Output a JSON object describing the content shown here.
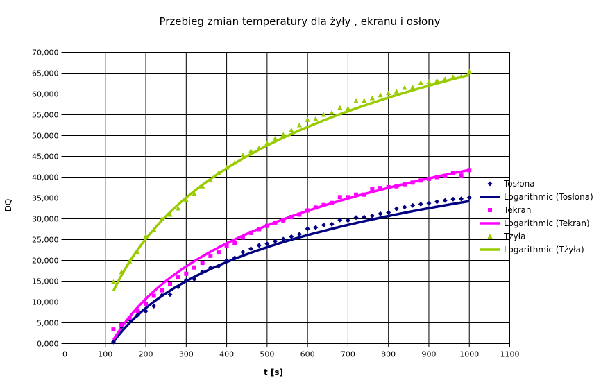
{
  "chart_data": {
    "type": "scatter",
    "title": "Przebieg zmian temperatury dla żyły , ekranu i osłony",
    "xlabel": "t [s]",
    "ylabel": "DQ",
    "xlim": [
      0,
      1100
    ],
    "ylim": [
      0,
      70000
    ],
    "xticks": [
      0,
      100,
      200,
      300,
      400,
      500,
      600,
      700,
      800,
      900,
      1000,
      1100
    ],
    "xtick_labels": [
      "0",
      "100",
      "200",
      "300",
      "400",
      "500",
      "600",
      "700",
      "800",
      "900",
      "1000",
      "1100"
    ],
    "yticks": [
      0,
      5000,
      10000,
      15000,
      20000,
      25000,
      30000,
      35000,
      40000,
      45000,
      50000,
      55000,
      60000,
      65000,
      70000
    ],
    "ytick_labels": [
      "0,000",
      "5,000",
      "10,000",
      "15,000",
      "20,000",
      "25,000",
      "30,000",
      "35,000",
      "40,000",
      "45,000",
      "50,000",
      "55,000",
      "60,000",
      "65,000",
      "70,000"
    ],
    "grid": true,
    "legend_position": "right",
    "series": [
      {
        "name": "Tosłona",
        "marker": "diamond",
        "color": "#000080",
        "x": [
          120,
          140,
          160,
          180,
          200,
          220,
          240,
          260,
          280,
          300,
          320,
          340,
          360,
          380,
          400,
          420,
          440,
          460,
          480,
          500,
          520,
          540,
          560,
          580,
          600,
          620,
          640,
          660,
          680,
          700,
          720,
          740,
          760,
          780,
          800,
          820,
          840,
          860,
          880,
          900,
          920,
          940,
          960,
          980,
          1000
        ],
        "y": [
          400,
          4000,
          5800,
          6900,
          7800,
          9000,
          11600,
          11800,
          13600,
          15200,
          15500,
          17200,
          18200,
          18600,
          20000,
          20600,
          22000,
          22800,
          23600,
          24000,
          24600,
          25100,
          25700,
          26300,
          27600,
          27900,
          28500,
          28700,
          29700,
          29600,
          30300,
          30400,
          30700,
          31200,
          31500,
          32400,
          32800,
          33200,
          33500,
          33700,
          34100,
          34400,
          34700,
          34800,
          35100
        ]
      },
      {
        "name": "Logarithmic (Tosłona)",
        "type": "line",
        "color": "#000080",
        "fit": {
          "a": 15962.8,
          "b": -76042
        },
        "x_range": [
          120,
          1000
        ]
      },
      {
        "name": "Tekran",
        "marker": "square",
        "color": "#ff00ff",
        "x": [
          120,
          140,
          160,
          180,
          200,
          220,
          240,
          260,
          280,
          300,
          320,
          340,
          360,
          380,
          400,
          420,
          440,
          460,
          480,
          500,
          520,
          540,
          560,
          580,
          600,
          620,
          640,
          660,
          680,
          700,
          720,
          740,
          760,
          780,
          800,
          820,
          840,
          860,
          880,
          900,
          920,
          940,
          960,
          980,
          1000
        ],
        "y": [
          3400,
          4500,
          6200,
          7900,
          9600,
          11500,
          12800,
          14300,
          15900,
          16800,
          18300,
          19400,
          21100,
          21900,
          23500,
          24200,
          25500,
          26600,
          27500,
          28300,
          29100,
          29600,
          30400,
          31000,
          32000,
          32700,
          33300,
          33800,
          35200,
          35200,
          35800,
          35800,
          37200,
          37400,
          37600,
          37800,
          38300,
          38700,
          39200,
          39600,
          40000,
          40300,
          41000,
          40400,
          41700
        ]
      },
      {
        "name": "Logarithmic (Tekran)",
        "type": "line",
        "color": "#ff00ff",
        "fit": {
          "a": 19254.1,
          "b": -91266
        },
        "x_range": [
          120,
          1000
        ]
      },
      {
        "name": "Tżyła",
        "marker": "triangle",
        "color": "#99cc00",
        "x": [
          120,
          140,
          160,
          180,
          200,
          220,
          240,
          260,
          280,
          300,
          320,
          340,
          360,
          380,
          400,
          420,
          440,
          460,
          480,
          500,
          520,
          540,
          560,
          580,
          600,
          620,
          640,
          660,
          680,
          700,
          720,
          740,
          760,
          780,
          800,
          820,
          840,
          860,
          880,
          900,
          920,
          940,
          960,
          980,
          1000
        ],
        "y": [
          14800,
          17200,
          19800,
          21900,
          25800,
          27400,
          30000,
          31000,
          32500,
          34500,
          36000,
          37800,
          39300,
          41000,
          42300,
          43500,
          45300,
          46300,
          47000,
          48200,
          49300,
          50200,
          51300,
          52500,
          53800,
          54000,
          55000,
          55500,
          56700,
          56500,
          58300,
          58400,
          59000,
          59700,
          60200,
          60600,
          61500,
          61600,
          62700,
          62900,
          63200,
          63600,
          64100,
          64200,
          65400
        ]
      },
      {
        "name": "Logarithmic (Tżyła)",
        "type": "line",
        "color": "#99cc00",
        "fit": {
          "a": 24492.6,
          "b": -104620
        },
        "x_range": [
          120,
          1000
        ]
      }
    ]
  }
}
